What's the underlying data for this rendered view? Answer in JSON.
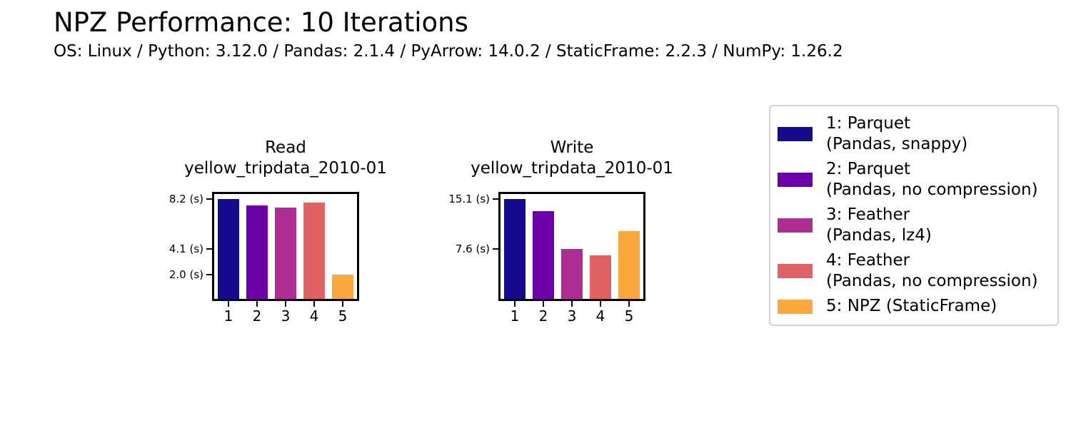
{
  "header": {
    "title": "NPZ Performance: 10 Iterations",
    "subtitle": "OS: Linux / Python: 3.12.0 / Pandas: 2.1.4 / PyArrow: 14.0.2 / StaticFrame: 2.2.3 / NumPy: 1.26.2"
  },
  "colors": {
    "bar_palette": [
      "#140a8c",
      "#6a00a8",
      "#ad2d92",
      "#df6363",
      "#fba93c"
    ],
    "axis": "#000000",
    "legend_border": "#d2d2d2",
    "background": "#ffffff"
  },
  "chart_data": [
    {
      "type": "bar",
      "title_line1": "Read",
      "title_line2": "yellow_tripdata_2010-01",
      "categories": [
        "1",
        "2",
        "3",
        "4",
        "5"
      ],
      "values": [
        8.2,
        7.7,
        7.5,
        7.9,
        2.0
      ],
      "ytick_values": [
        8.2,
        4.1,
        2.0
      ],
      "ytick_labels": [
        "8.2 (s)",
        "4.1 (s)",
        "2.0 (s)"
      ],
      "ylim": [
        0,
        8.61
      ],
      "unit": "seconds",
      "grid": false
    },
    {
      "type": "bar",
      "title_line1": "Write",
      "title_line2": "yellow_tripdata_2010-01",
      "categories": [
        "1",
        "2",
        "3",
        "4",
        "5"
      ],
      "values": [
        15.1,
        13.3,
        7.6,
        6.6,
        10.2
      ],
      "ytick_values": [
        15.1,
        7.6
      ],
      "ytick_labels": [
        "15.1 (s)",
        "7.6 (s)"
      ],
      "ylim": [
        0,
        15.86
      ],
      "unit": "seconds",
      "grid": false
    }
  ],
  "legend": {
    "position": "right",
    "entries": [
      {
        "label_line1": "1: Parquet",
        "label_line2": "(Pandas, snappy)",
        "color": "#140a8c"
      },
      {
        "label_line1": "2: Parquet",
        "label_line2": "(Pandas, no compression)",
        "color": "#6a00a8"
      },
      {
        "label_line1": "3: Feather",
        "label_line2": "(Pandas, lz4)",
        "color": "#ad2d92"
      },
      {
        "label_line1": "4: Feather",
        "label_line2": "(Pandas, no compression)",
        "color": "#df6363"
      },
      {
        "label_line1": "5: NPZ (StaticFrame)",
        "label_line2": "",
        "color": "#fba93c"
      }
    ]
  }
}
